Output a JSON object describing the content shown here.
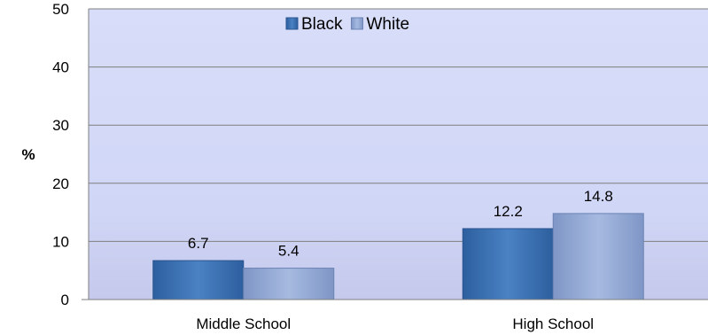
{
  "chart_data": {
    "type": "bar",
    "categories": [
      "Middle School",
      "High School"
    ],
    "series": [
      {
        "name": "Black",
        "values": [
          6.7,
          12.2
        ]
      },
      {
        "name": "White",
        "values": [
          5.4,
          14.8
        ]
      }
    ],
    "ylabel": "%",
    "ylim": [
      0,
      50
    ],
    "yticks": [
      0,
      10,
      20,
      30,
      40,
      50
    ],
    "grid": true,
    "legend_position": "top-center",
    "colors": {
      "Black": "#3b72b4",
      "White": "#93aad6",
      "plot_background": "#d6dcf7",
      "gridline": "#7f7f7f"
    }
  }
}
